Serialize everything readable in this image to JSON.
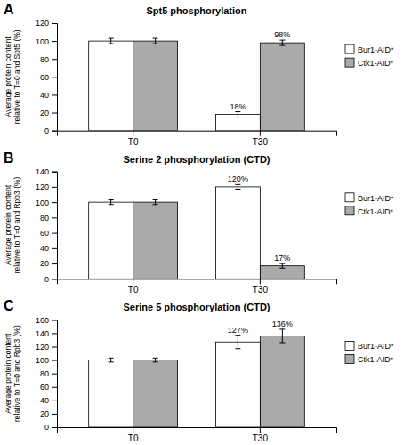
{
  "chart_data": [
    {
      "type": "bar",
      "title": "Spt5 phosphorylation",
      "ylabel": "Average protein content\nrelative to T=0 and Spt5 (%)",
      "categories": [
        "T0",
        "T30"
      ],
      "series": [
        {
          "name": "Bur1-AID*",
          "color": "#ffffff",
          "values": [
            100,
            18
          ],
          "errors": [
            3,
            3
          ],
          "value_labels": [
            null,
            "18%"
          ]
        },
        {
          "name": "Ctk1-AID*",
          "color": "#aaaaaa",
          "values": [
            100,
            98
          ],
          "errors": [
            3,
            3
          ],
          "value_labels": [
            null,
            "98%"
          ]
        }
      ],
      "ylim": [
        0,
        120
      ],
      "yticks": [
        0,
        20,
        40,
        60,
        80,
        100,
        120
      ],
      "data_labels": true,
      "legend": "right",
      "annotations": [
        "A"
      ]
    },
    {
      "type": "bar",
      "title": "Serine 2 phosphorylation (CTD)",
      "ylabel": "Average protein content\nrelative to T=0 and Rpb3 (%)",
      "categories": [
        "T0",
        "T30"
      ],
      "series": [
        {
          "name": "Bur1-AID*",
          "color": "#ffffff",
          "values": [
            100,
            120
          ],
          "errors": [
            3,
            3
          ],
          "value_labels": [
            null,
            "120%"
          ]
        },
        {
          "name": "Ctk1-AID*",
          "color": "#aaaaaa",
          "values": [
            100,
            17
          ],
          "errors": [
            3,
            3
          ],
          "value_labels": [
            null,
            "17%"
          ]
        }
      ],
      "ylim": [
        0,
        140
      ],
      "yticks": [
        0,
        20,
        40,
        60,
        80,
        100,
        120,
        140
      ],
      "data_labels": true,
      "legend": "right",
      "annotations": [
        "B"
      ]
    },
    {
      "type": "bar",
      "title": "Serine 5 phosphorylation (CTD)",
      "ylabel": "Average protein content\nrelative to T=0 and Rpb3 (%)",
      "categories": [
        "T0",
        "T30"
      ],
      "series": [
        {
          "name": "Bur1-AID*",
          "color": "#ffffff",
          "values": [
            100,
            127
          ],
          "errors": [
            3,
            10
          ],
          "value_labels": [
            null,
            "127%"
          ]
        },
        {
          "name": "Ctk1-AID*",
          "color": "#aaaaaa",
          "values": [
            100,
            136
          ],
          "errors": [
            3,
            10
          ],
          "value_labels": [
            null,
            "136%"
          ]
        }
      ],
      "ylim": [
        0,
        160
      ],
      "yticks": [
        0,
        20,
        40,
        60,
        80,
        100,
        120,
        140,
        160
      ],
      "data_labels": true,
      "legend": "right",
      "annotations": [
        "C"
      ]
    }
  ]
}
